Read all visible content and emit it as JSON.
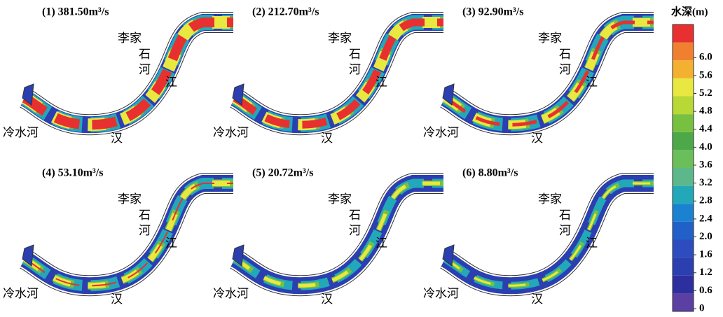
{
  "panels": [
    {
      "title": "(1) 381.50m³/s"
    },
    {
      "title": "(2) 212.70m³/s"
    },
    {
      "title": "(3) 92.90m³/s"
    },
    {
      "title": "(4) 53.10m³/s"
    },
    {
      "title": "(5) 20.72m³/s"
    },
    {
      "title": "(6) 8.80m³/s"
    }
  ],
  "map_labels": [
    "李家",
    "石",
    "河",
    "江",
    "冷水河",
    "汉"
  ],
  "colorbar": {
    "title": "水深(m)",
    "ticks": [
      0,
      0.6,
      1.2,
      1.6,
      {
        "value": 2,
        "label": "2.0"
      },
      2.4,
      2.8,
      3.2,
      3.6,
      {
        "value": 4,
        "label": "4.0"
      },
      4.4,
      4.8,
      5.2,
      5.6,
      {
        "value": 6,
        "label": "6.0"
      }
    ],
    "colors": [
      "#5b3fa3",
      "#2d2f9e",
      "#2c3fb0",
      "#2c4cc0",
      "#2060c8",
      "#1a82d0",
      "#22a8b8",
      "#5cb88a",
      "#6bbf5a",
      "#4da84a",
      "#78c040",
      "#b8d838",
      "#e8e840",
      "#f4b030",
      "#f08030",
      "#e83030"
    ]
  }
}
